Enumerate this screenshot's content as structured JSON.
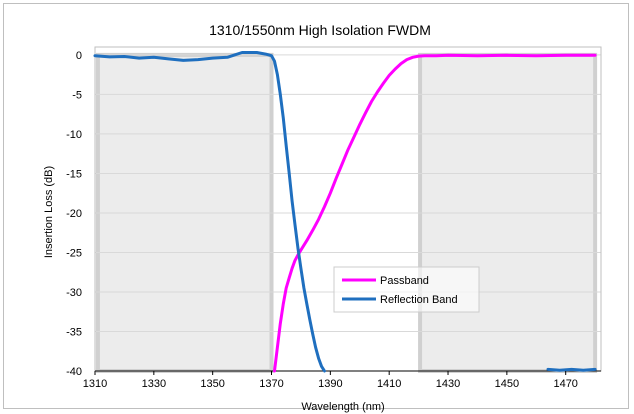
{
  "chart_data": {
    "type": "line",
    "title": "1310/1550nm High Isolation FWDM",
    "xlabel": "Wavelength (nm)",
    "ylabel": "Insertion Loss (dB)",
    "xlim": [
      1310,
      1482
    ],
    "ylim": [
      -40,
      1
    ],
    "xticks": [
      1310,
      1330,
      1350,
      1370,
      1390,
      1410,
      1430,
      1450,
      1470
    ],
    "yticks": [
      0,
      -5,
      -10,
      -15,
      -20,
      -25,
      -30,
      -35,
      -40
    ],
    "grid": "horizontal",
    "legend_position": "center-right",
    "bands": [
      {
        "x": [
          1311,
          1370
        ],
        "y": [
          -40,
          0
        ]
      },
      {
        "x": [
          1420.5,
          1480
        ],
        "y": [
          -40,
          0
        ]
      }
    ],
    "series": [
      {
        "name": "Passband",
        "color": "#ff00ff",
        "x": [
          1371,
          1372,
          1373,
          1374,
          1375,
          1376,
          1377,
          1378,
          1379,
          1380,
          1382,
          1384,
          1386,
          1388,
          1390,
          1392,
          1394,
          1396,
          1398,
          1400,
          1402,
          1404,
          1406,
          1408,
          1410,
          1412,
          1414,
          1416,
          1418,
          1420,
          1422,
          1426,
          1430,
          1440,
          1450,
          1460,
          1470,
          1480
        ],
        "y": [
          -40,
          -37,
          -34,
          -31.5,
          -29.5,
          -28.2,
          -27,
          -26,
          -25.3,
          -24.7,
          -23.5,
          -22.2,
          -20.8,
          -19.2,
          -17.5,
          -15.6,
          -13.8,
          -12,
          -10.4,
          -8.8,
          -7.3,
          -5.9,
          -4.7,
          -3.6,
          -2.6,
          -1.8,
          -1.1,
          -0.6,
          -0.3,
          -0.15,
          -0.1,
          -0.1,
          -0.05,
          -0.1,
          -0.05,
          -0.1,
          -0.05,
          -0.05
        ]
      },
      {
        "name": "Reflection Band",
        "color": "#1f6fbf",
        "x": [
          1310,
          1315,
          1320,
          1325,
          1330,
          1335,
          1340,
          1345,
          1350,
          1355,
          1360,
          1365,
          1368,
          1370,
          1371,
          1372,
          1373,
          1374,
          1375,
          1376,
          1377,
          1378,
          1379,
          1380,
          1381,
          1382,
          1383,
          1384,
          1385,
          1386,
          1387,
          1388
        ],
        "y": [
          -0.1,
          -0.25,
          -0.2,
          -0.4,
          -0.3,
          -0.5,
          -0.7,
          -0.6,
          -0.4,
          -0.3,
          0.3,
          0.3,
          0.1,
          -0.1,
          -0.8,
          -2.5,
          -5,
          -8,
          -11.5,
          -15,
          -18.5,
          -21.5,
          -24.5,
          -27,
          -29.5,
          -31.5,
          -33.5,
          -35.3,
          -37,
          -38.4,
          -39.4,
          -40
        ]
      },
      {
        "name": "",
        "color": "#1f6fbf",
        "x": [
          1464,
          1468,
          1472,
          1476,
          1480
        ],
        "y": [
          -39.8,
          -39.9,
          -39.8,
          -39.9,
          -39.8
        ]
      }
    ]
  }
}
